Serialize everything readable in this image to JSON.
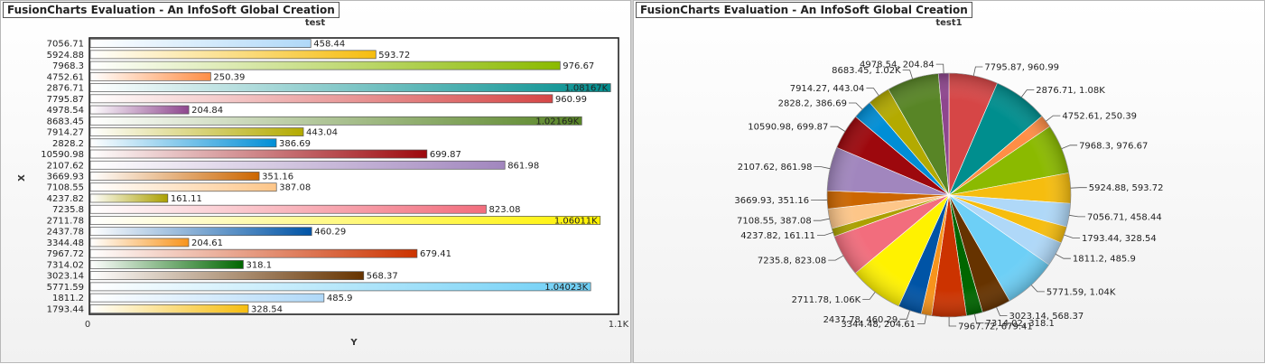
{
  "window_title": "FusionCharts Evaluation - An InfoSoft Global Creation",
  "chart_data": [
    {
      "type": "bar",
      "title": "test",
      "xlabel": "X",
      "ylabel": "Y",
      "ylim": [
        0,
        1100
      ],
      "axis_tick_labels": [
        "0",
        "1.1K"
      ],
      "grid": false,
      "categories": [
        "7056.71",
        "5924.88",
        "7968.3",
        "4752.61",
        "2876.71",
        "7795.87",
        "4978.54",
        "8683.45",
        "7914.27",
        "2828.2",
        "10590.98",
        "2107.62",
        "3669.93",
        "7108.55",
        "4237.82",
        "7235.8",
        "2711.78",
        "2437.78",
        "3344.48",
        "7967.72",
        "7314.02",
        "3023.14",
        "5771.59",
        "1811.2",
        "1793.44"
      ],
      "values": [
        458.44,
        593.72,
        976.67,
        250.39,
        1081.67,
        960.99,
        204.84,
        1021.69,
        443.04,
        386.69,
        699.87,
        861.98,
        351.16,
        387.08,
        161.11,
        823.08,
        1060.11,
        460.29,
        204.61,
        679.41,
        318.1,
        568.37,
        1040.23,
        485.9,
        328.54
      ],
      "value_labels": [
        "458.44",
        "593.72",
        "976.67",
        "250.39",
        "1.08167K",
        "960.99",
        "204.84",
        "1.02169K",
        "443.04",
        "386.69",
        "699.87",
        "861.98",
        "351.16",
        "387.08",
        "161.11",
        "823.08",
        "1.06011K",
        "460.29",
        "204.61",
        "679.41",
        "318.1",
        "568.37",
        "1.04023K",
        "485.9",
        "328.54"
      ],
      "colors": [
        "#AFD8F8",
        "#F6BD0F",
        "#8BBA00",
        "#FF8E46",
        "#008E8E",
        "#D64646",
        "#8E468E",
        "#588526",
        "#B3AA00",
        "#008ED6",
        "#9D080D",
        "#A186BE",
        "#CC6600",
        "#FDC689",
        "#ABA000",
        "#F26D7D",
        "#FFF200",
        "#0054A6",
        "#F7941C",
        "#CC3300",
        "#006600",
        "#663300",
        "#6DCFF6",
        "#AFD8F8",
        "#F6BD0F"
      ]
    },
    {
      "type": "pie",
      "title": "test1",
      "slices": [
        {
          "x": 7795.87,
          "value": 960.99,
          "label": "7795.87, 960.99",
          "color": "#D64646"
        },
        {
          "x": 2876.71,
          "value": 1081.67,
          "label": "2876.71, 1.08K",
          "color": "#008E8E"
        },
        {
          "x": 4752.61,
          "value": 250.39,
          "label": "4752.61, 250.39",
          "color": "#FF8E46"
        },
        {
          "x": 7968.3,
          "value": 976.67,
          "label": "7968.3, 976.67",
          "color": "#8BBA00"
        },
        {
          "x": 5924.88,
          "value": 593.72,
          "label": "5924.88, 593.72",
          "color": "#F6BD0F"
        },
        {
          "x": 7056.71,
          "value": 458.44,
          "label": "7056.71, 458.44",
          "color": "#AFD8F8"
        },
        {
          "x": 1793.44,
          "value": 328.54,
          "label": "1793.44, 328.54",
          "color": "#F6BD0F"
        },
        {
          "x": 1811.2,
          "value": 485.9,
          "label": "1811.2, 485.9",
          "color": "#AFD8F8"
        },
        {
          "x": 5771.59,
          "value": 1040.23,
          "label": "5771.59, 1.04K",
          "color": "#6DCFF6"
        },
        {
          "x": 3023.14,
          "value": 568.37,
          "label": "3023.14, 568.37",
          "color": "#663300"
        },
        {
          "x": 7314.02,
          "value": 318.1,
          "label": "7314.02, 318.1",
          "color": "#006600"
        },
        {
          "x": 7967.72,
          "value": 679.41,
          "label": "7967.72, 679.41",
          "color": "#CC3300"
        },
        {
          "x": 3344.48,
          "value": 204.61,
          "label": "3344.48, 204.61",
          "color": "#F7941C"
        },
        {
          "x": 2437.78,
          "value": 460.29,
          "label": "2437.78, 460.29",
          "color": "#0054A6"
        },
        {
          "x": 2711.78,
          "value": 1060.11,
          "label": "2711.78, 1.06K",
          "color": "#FFF200"
        },
        {
          "x": 7235.8,
          "value": 823.08,
          "label": "7235.8, 823.08",
          "color": "#F26D7D"
        },
        {
          "x": 4237.82,
          "value": 161.11,
          "label": "4237.82, 161.11",
          "color": "#ABA000"
        },
        {
          "x": 7108.55,
          "value": 387.08,
          "label": "7108.55, 387.08",
          "color": "#FDC689"
        },
        {
          "x": 3669.93,
          "value": 351.16,
          "label": "3669.93, 351.16",
          "color": "#CC6600"
        },
        {
          "x": 2107.62,
          "value": 861.98,
          "label": "2107.62, 861.98",
          "color": "#A186BE"
        },
        {
          "x": 10590.98,
          "value": 699.87,
          "label": "10590.98, 699.87",
          "color": "#9D080D"
        },
        {
          "x": 2828.2,
          "value": 386.69,
          "label": "2828.2, 386.69",
          "color": "#008ED6"
        },
        {
          "x": 7914.27,
          "value": 443.04,
          "label": "7914.27, 443.04",
          "color": "#B3AA00"
        },
        {
          "x": 8683.45,
          "value": 1021.69,
          "label": "8683.45, 1.02K",
          "color": "#588526"
        },
        {
          "x": 4978.54,
          "value": 204.84,
          "label": "4978.54, 204.84",
          "color": "#8E468E"
        }
      ]
    }
  ]
}
